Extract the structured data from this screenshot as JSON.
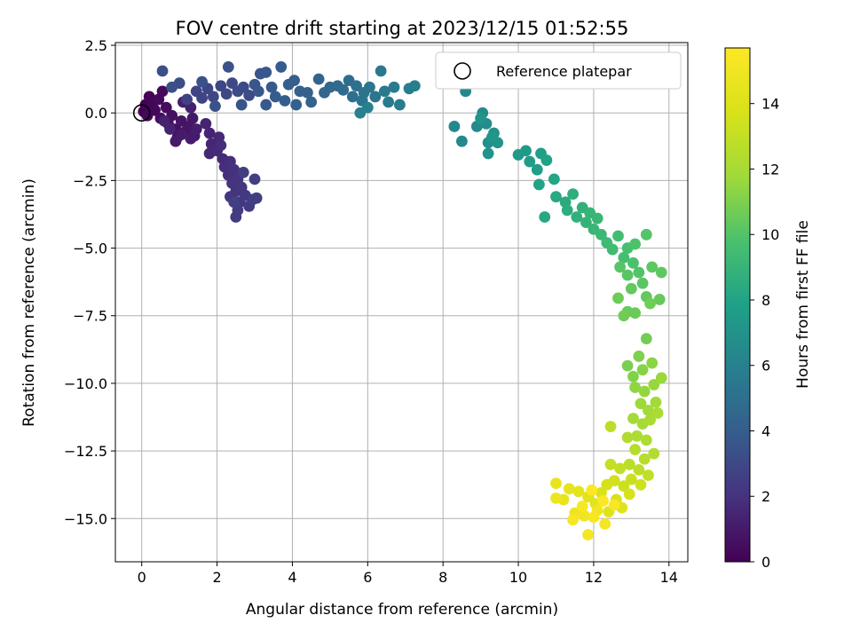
{
  "chart_data": {
    "type": "scatter",
    "title": "FOV centre drift starting at 2023/12/15 01:52:55",
    "xlabel": "Angular distance from reference (arcmin)",
    "ylabel": "Rotation from reference (arcmin)",
    "xlim": [
      -0.7,
      14.5
    ],
    "ylim": [
      -16.6,
      2.6
    ],
    "xticks": [
      0,
      2,
      4,
      6,
      8,
      10,
      12,
      14
    ],
    "yticks": [
      2.5,
      0.0,
      -2.5,
      -5.0,
      -7.5,
      -10.0,
      -12.5,
      -15.0
    ],
    "ytick_labels": [
      "2.5",
      "0.0",
      "−2.5",
      "−5.0",
      "−7.5",
      "−10.0",
      "−12.5",
      "−15.0"
    ],
    "grid": true,
    "legend": {
      "label": "Reference platepar",
      "placement": "top-right"
    },
    "reference_point": {
      "x": 0,
      "y": 0
    },
    "colorbar": {
      "label": "Hours from first FF file",
      "colormap": "viridis",
      "range": [
        0,
        15.7
      ],
      "ticks": [
        0,
        2,
        4,
        6,
        8,
        10,
        12,
        14
      ]
    },
    "points": [
      {
        "x": 0.05,
        "y": 0.05,
        "h": 0.0
      },
      {
        "x": 0.1,
        "y": 0.3,
        "h": 0.1
      },
      {
        "x": 0.2,
        "y": 0.6,
        "h": 0.15
      },
      {
        "x": 0.3,
        "y": 0.4,
        "h": 0.2
      },
      {
        "x": 0.15,
        "y": -0.1,
        "h": 0.25
      },
      {
        "x": 0.35,
        "y": 0.1,
        "h": 0.3
      },
      {
        "x": 0.45,
        "y": 0.5,
        "h": 0.35
      },
      {
        "x": 0.55,
        "y": 0.8,
        "h": 0.4
      },
      {
        "x": 0.5,
        "y": -0.2,
        "h": 0.45
      },
      {
        "x": 0.65,
        "y": 0.2,
        "h": 0.5
      },
      {
        "x": 0.7,
        "y": -0.4,
        "h": 0.55
      },
      {
        "x": 0.8,
        "y": -0.1,
        "h": 0.6
      },
      {
        "x": 0.9,
        "y": -0.6,
        "h": 0.65
      },
      {
        "x": 0.95,
        "y": -0.9,
        "h": 0.7
      },
      {
        "x": 1.05,
        "y": -0.3,
        "h": 0.75
      },
      {
        "x": 1.15,
        "y": -0.7,
        "h": 0.8
      },
      {
        "x": 1.25,
        "y": -0.5,
        "h": 0.85
      },
      {
        "x": 1.35,
        "y": -0.2,
        "h": 0.9
      },
      {
        "x": 1.4,
        "y": -0.85,
        "h": 0.95
      },
      {
        "x": 0.9,
        "y": -1.05,
        "h": 1.0
      },
      {
        "x": 1.05,
        "y": -0.8,
        "h": 1.05
      },
      {
        "x": 1.3,
        "y": -0.95,
        "h": 1.1
      },
      {
        "x": 1.45,
        "y": -0.6,
        "h": 1.15
      },
      {
        "x": 1.3,
        "y": 0.2,
        "h": 1.2
      },
      {
        "x": 1.1,
        "y": 0.4,
        "h": 1.25
      },
      {
        "x": 0.6,
        "y": -0.3,
        "h": 1.3
      },
      {
        "x": 0.75,
        "y": -0.6,
        "h": 1.35
      },
      {
        "x": 1.7,
        "y": -0.4,
        "h": 1.4
      },
      {
        "x": 1.8,
        "y": -0.75,
        "h": 1.45
      },
      {
        "x": 1.85,
        "y": -1.15,
        "h": 1.5
      },
      {
        "x": 2.05,
        "y": -0.9,
        "h": 1.55
      },
      {
        "x": 1.8,
        "y": -1.5,
        "h": 1.6
      },
      {
        "x": 2.0,
        "y": -1.4,
        "h": 1.65
      },
      {
        "x": 2.15,
        "y": -1.7,
        "h": 1.7
      },
      {
        "x": 2.1,
        "y": -1.2,
        "h": 1.75
      },
      {
        "x": 2.2,
        "y": -2.0,
        "h": 1.8
      },
      {
        "x": 2.35,
        "y": -1.8,
        "h": 1.85
      },
      {
        "x": 2.3,
        "y": -2.3,
        "h": 1.9
      },
      {
        "x": 2.45,
        "y": -2.1,
        "h": 1.95
      },
      {
        "x": 2.4,
        "y": -2.6,
        "h": 2.0
      },
      {
        "x": 2.55,
        "y": -2.45,
        "h": 2.05
      },
      {
        "x": 2.5,
        "y": -2.9,
        "h": 2.1
      },
      {
        "x": 2.65,
        "y": -2.75,
        "h": 2.15
      },
      {
        "x": 2.35,
        "y": -3.1,
        "h": 2.2
      },
      {
        "x": 2.6,
        "y": -3.3,
        "h": 2.25
      },
      {
        "x": 2.75,
        "y": -3.05,
        "h": 2.3
      },
      {
        "x": 2.85,
        "y": -3.45,
        "h": 2.35
      },
      {
        "x": 2.55,
        "y": -3.6,
        "h": 2.4
      },
      {
        "x": 2.5,
        "y": -3.85,
        "h": 2.45
      },
      {
        "x": 2.95,
        "y": -3.2,
        "h": 2.5
      },
      {
        "x": 3.05,
        "y": -3.15,
        "h": 2.5
      },
      {
        "x": 3.0,
        "y": -2.45,
        "h": 2.55
      },
      {
        "x": 2.7,
        "y": -2.2,
        "h": 2.55
      },
      {
        "x": 2.45,
        "y": -3.3,
        "h": 2.6
      },
      {
        "x": 1.2,
        "y": 0.5,
        "h": 2.7
      },
      {
        "x": 1.45,
        "y": 0.8,
        "h": 2.75
      },
      {
        "x": 1.6,
        "y": 0.55,
        "h": 2.8
      },
      {
        "x": 1.75,
        "y": 0.9,
        "h": 2.85
      },
      {
        "x": 1.9,
        "y": 0.6,
        "h": 2.9
      },
      {
        "x": 2.1,
        "y": 1.0,
        "h": 2.95
      },
      {
        "x": 2.25,
        "y": 0.7,
        "h": 3.0
      },
      {
        "x": 2.4,
        "y": 1.1,
        "h": 3.05
      },
      {
        "x": 2.55,
        "y": 0.8,
        "h": 3.1
      },
      {
        "x": 2.7,
        "y": 0.95,
        "h": 3.15
      },
      {
        "x": 2.85,
        "y": 0.65,
        "h": 3.2
      },
      {
        "x": 1.0,
        "y": 1.1,
        "h": 3.25
      },
      {
        "x": 0.55,
        "y": 1.55,
        "h": 3.3
      },
      {
        "x": 0.8,
        "y": 0.95,
        "h": 3.35
      },
      {
        "x": 1.6,
        "y": 1.15,
        "h": 3.4
      },
      {
        "x": 2.3,
        "y": 1.7,
        "h": 3.45
      },
      {
        "x": 1.95,
        "y": 0.25,
        "h": 3.5
      },
      {
        "x": 2.65,
        "y": 0.3,
        "h": 3.55
      },
      {
        "x": 3.0,
        "y": 1.05,
        "h": 3.6
      },
      {
        "x": 3.15,
        "y": 1.45,
        "h": 3.65
      },
      {
        "x": 3.3,
        "y": 1.5,
        "h": 3.7
      },
      {
        "x": 3.1,
        "y": 0.8,
        "h": 3.75
      },
      {
        "x": 3.3,
        "y": 0.3,
        "h": 3.8
      },
      {
        "x": 3.45,
        "y": 0.95,
        "h": 3.85
      },
      {
        "x": 3.55,
        "y": 0.6,
        "h": 3.9
      },
      {
        "x": 3.7,
        "y": 1.7,
        "h": 3.95
      },
      {
        "x": 3.8,
        "y": 0.45,
        "h": 4.0
      },
      {
        "x": 3.9,
        "y": 1.05,
        "h": 4.05
      },
      {
        "x": 4.05,
        "y": 1.2,
        "h": 4.1
      },
      {
        "x": 4.1,
        "y": 0.3,
        "h": 4.15
      },
      {
        "x": 4.2,
        "y": 0.8,
        "h": 4.2
      },
      {
        "x": 4.4,
        "y": 0.75,
        "h": 4.25
      },
      {
        "x": 4.5,
        "y": 0.4,
        "h": 4.3
      },
      {
        "x": 4.7,
        "y": 1.25,
        "h": 4.4
      },
      {
        "x": 4.85,
        "y": 0.75,
        "h": 4.5
      },
      {
        "x": 5.0,
        "y": 0.95,
        "h": 4.6
      },
      {
        "x": 5.2,
        "y": 1.0,
        "h": 4.7
      },
      {
        "x": 5.35,
        "y": 0.85,
        "h": 4.8
      },
      {
        "x": 5.5,
        "y": 1.2,
        "h": 4.9
      },
      {
        "x": 5.6,
        "y": 0.6,
        "h": 5.0
      },
      {
        "x": 5.7,
        "y": 1.0,
        "h": 5.1
      },
      {
        "x": 5.85,
        "y": 0.45,
        "h": 5.2
      },
      {
        "x": 5.9,
        "y": 0.75,
        "h": 5.25
      },
      {
        "x": 6.05,
        "y": 0.95,
        "h": 5.3
      },
      {
        "x": 6.2,
        "y": 0.6,
        "h": 5.4
      },
      {
        "x": 6.35,
        "y": 1.55,
        "h": 5.5
      },
      {
        "x": 6.45,
        "y": 0.8,
        "h": 5.55
      },
      {
        "x": 6.55,
        "y": 0.4,
        "h": 5.6
      },
      {
        "x": 6.7,
        "y": 0.95,
        "h": 5.65
      },
      {
        "x": 6.85,
        "y": 0.3,
        "h": 5.7
      },
      {
        "x": 7.1,
        "y": 0.9,
        "h": 5.8
      },
      {
        "x": 7.25,
        "y": 1.0,
        "h": 5.9
      },
      {
        "x": 6.0,
        "y": 0.2,
        "h": 5.95
      },
      {
        "x": 5.8,
        "y": 0.0,
        "h": 6.0
      },
      {
        "x": 8.3,
        "y": -0.5,
        "h": 6.3
      },
      {
        "x": 8.6,
        "y": 0.8,
        "h": 6.35
      },
      {
        "x": 8.5,
        "y": -1.05,
        "h": 6.4
      },
      {
        "x": 8.9,
        "y": -0.5,
        "h": 6.5
      },
      {
        "x": 9.05,
        "y": 0.0,
        "h": 6.6
      },
      {
        "x": 9.15,
        "y": -0.4,
        "h": 6.7
      },
      {
        "x": 9.2,
        "y": -1.1,
        "h": 6.8
      },
      {
        "x": 9.35,
        "y": -0.75,
        "h": 6.9
      },
      {
        "x": 9.2,
        "y": -1.5,
        "h": 7.0
      },
      {
        "x": 9.45,
        "y": -1.1,
        "h": 7.1
      },
      {
        "x": 9.0,
        "y": -0.2,
        "h": 7.15
      },
      {
        "x": 9.3,
        "y": -0.9,
        "h": 7.2
      },
      {
        "x": 10.0,
        "y": -1.55,
        "h": 7.4
      },
      {
        "x": 10.2,
        "y": -1.4,
        "h": 7.5
      },
      {
        "x": 10.3,
        "y": -1.8,
        "h": 7.6
      },
      {
        "x": 10.5,
        "y": -2.1,
        "h": 7.7
      },
      {
        "x": 10.6,
        "y": -1.5,
        "h": 7.8
      },
      {
        "x": 10.75,
        "y": -1.75,
        "h": 7.9
      },
      {
        "x": 10.55,
        "y": -2.65,
        "h": 8.0
      },
      {
        "x": 10.95,
        "y": -2.45,
        "h": 8.1
      },
      {
        "x": 10.7,
        "y": -3.85,
        "h": 8.2
      },
      {
        "x": 11.0,
        "y": -3.1,
        "h": 8.3
      },
      {
        "x": 11.25,
        "y": -3.3,
        "h": 8.4
      },
      {
        "x": 11.3,
        "y": -3.6,
        "h": 8.5
      },
      {
        "x": 11.45,
        "y": -3.0,
        "h": 8.6
      },
      {
        "x": 11.55,
        "y": -3.85,
        "h": 8.7
      },
      {
        "x": 11.7,
        "y": -3.5,
        "h": 8.8
      },
      {
        "x": 11.8,
        "y": -4.05,
        "h": 8.9
      },
      {
        "x": 11.9,
        "y": -3.7,
        "h": 9.0
      },
      {
        "x": 12.0,
        "y": -4.3,
        "h": 9.05
      },
      {
        "x": 12.1,
        "y": -3.9,
        "h": 9.1
      },
      {
        "x": 12.2,
        "y": -4.5,
        "h": 9.2
      },
      {
        "x": 12.35,
        "y": -4.8,
        "h": 9.3
      },
      {
        "x": 12.5,
        "y": -5.05,
        "h": 9.4
      },
      {
        "x": 12.65,
        "y": -4.55,
        "h": 9.5
      },
      {
        "x": 12.8,
        "y": -5.35,
        "h": 9.6
      },
      {
        "x": 12.9,
        "y": -5.0,
        "h": 9.7
      },
      {
        "x": 13.05,
        "y": -5.55,
        "h": 9.8
      },
      {
        "x": 13.1,
        "y": -4.85,
        "h": 9.9
      },
      {
        "x": 13.2,
        "y": -5.9,
        "h": 10.0
      },
      {
        "x": 13.4,
        "y": -4.5,
        "h": 10.05
      },
      {
        "x": 12.7,
        "y": -5.7,
        "h": 10.1
      },
      {
        "x": 12.9,
        "y": -6.0,
        "h": 10.15
      },
      {
        "x": 13.3,
        "y": -6.3,
        "h": 10.2
      },
      {
        "x": 13.55,
        "y": -5.7,
        "h": 10.25
      },
      {
        "x": 13.8,
        "y": -5.9,
        "h": 10.3
      },
      {
        "x": 13.0,
        "y": -6.5,
        "h": 10.35
      },
      {
        "x": 13.4,
        "y": -6.8,
        "h": 10.4
      },
      {
        "x": 13.75,
        "y": -6.9,
        "h": 10.45
      },
      {
        "x": 12.9,
        "y": -7.35,
        "h": 10.5
      },
      {
        "x": 13.1,
        "y": -7.4,
        "h": 10.55
      },
      {
        "x": 12.65,
        "y": -6.85,
        "h": 10.6
      },
      {
        "x": 13.5,
        "y": -7.05,
        "h": 10.65
      },
      {
        "x": 12.8,
        "y": -7.5,
        "h": 10.7
      },
      {
        "x": 13.4,
        "y": -8.35,
        "h": 10.75
      },
      {
        "x": 12.9,
        "y": -9.35,
        "h": 10.9
      },
      {
        "x": 13.2,
        "y": -9.0,
        "h": 11.0
      },
      {
        "x": 13.05,
        "y": -9.75,
        "h": 11.1
      },
      {
        "x": 13.3,
        "y": -9.5,
        "h": 11.2
      },
      {
        "x": 13.55,
        "y": -9.25,
        "h": 11.3
      },
      {
        "x": 13.1,
        "y": -10.15,
        "h": 11.4
      },
      {
        "x": 13.35,
        "y": -10.3,
        "h": 11.5
      },
      {
        "x": 13.6,
        "y": -10.05,
        "h": 11.6
      },
      {
        "x": 13.8,
        "y": -9.8,
        "h": 11.65
      },
      {
        "x": 13.25,
        "y": -10.75,
        "h": 11.7
      },
      {
        "x": 13.45,
        "y": -11.0,
        "h": 11.8
      },
      {
        "x": 13.65,
        "y": -10.7,
        "h": 11.85
      },
      {
        "x": 13.05,
        "y": -11.3,
        "h": 11.9
      },
      {
        "x": 13.3,
        "y": -11.5,
        "h": 12.0
      },
      {
        "x": 13.5,
        "y": -11.35,
        "h": 12.1
      },
      {
        "x": 13.7,
        "y": -11.1,
        "h": 12.15
      },
      {
        "x": 13.15,
        "y": -11.95,
        "h": 12.2
      },
      {
        "x": 13.4,
        "y": -12.1,
        "h": 12.3
      },
      {
        "x": 12.9,
        "y": -12.0,
        "h": 12.35
      },
      {
        "x": 13.6,
        "y": -12.6,
        "h": 12.4
      },
      {
        "x": 13.1,
        "y": -12.45,
        "h": 12.5
      },
      {
        "x": 13.35,
        "y": -12.8,
        "h": 12.6
      },
      {
        "x": 12.95,
        "y": -13.0,
        "h": 12.7
      },
      {
        "x": 12.45,
        "y": -11.6,
        "h": 12.75
      },
      {
        "x": 13.2,
        "y": -13.2,
        "h": 12.8
      },
      {
        "x": 13.45,
        "y": -13.4,
        "h": 12.9
      },
      {
        "x": 12.7,
        "y": -13.15,
        "h": 13.0
      },
      {
        "x": 12.45,
        "y": -13.0,
        "h": 13.1
      },
      {
        "x": 13.0,
        "y": -13.55,
        "h": 13.2
      },
      {
        "x": 12.8,
        "y": -13.8,
        "h": 13.3
      },
      {
        "x": 13.25,
        "y": -13.75,
        "h": 13.4
      },
      {
        "x": 12.55,
        "y": -13.6,
        "h": 13.5
      },
      {
        "x": 12.35,
        "y": -13.75,
        "h": 13.6
      },
      {
        "x": 12.95,
        "y": -14.1,
        "h": 13.7
      },
      {
        "x": 12.6,
        "y": -14.3,
        "h": 13.8
      },
      {
        "x": 12.2,
        "y": -14.05,
        "h": 13.9
      },
      {
        "x": 12.75,
        "y": -14.6,
        "h": 14.0
      },
      {
        "x": 12.4,
        "y": -14.75,
        "h": 14.1
      },
      {
        "x": 12.05,
        "y": -14.45,
        "h": 14.2
      },
      {
        "x": 11.85,
        "y": -14.2,
        "h": 14.3
      },
      {
        "x": 11.6,
        "y": -14.0,
        "h": 14.4
      },
      {
        "x": 11.35,
        "y": -13.9,
        "h": 14.5
      },
      {
        "x": 11.2,
        "y": -14.3,
        "h": 14.6
      },
      {
        "x": 11.0,
        "y": -13.7,
        "h": 14.7
      },
      {
        "x": 11.0,
        "y": -14.25,
        "h": 14.8
      },
      {
        "x": 11.5,
        "y": -14.8,
        "h": 14.9
      },
      {
        "x": 11.75,
        "y": -14.9,
        "h": 15.0
      },
      {
        "x": 12.1,
        "y": -14.7,
        "h": 15.1
      },
      {
        "x": 12.3,
        "y": -15.2,
        "h": 15.2
      },
      {
        "x": 11.85,
        "y": -15.6,
        "h": 15.3
      },
      {
        "x": 11.45,
        "y": -15.05,
        "h": 15.4
      },
      {
        "x": 12.0,
        "y": -14.95,
        "h": 15.45
      },
      {
        "x": 12.55,
        "y": -14.5,
        "h": 15.5
      },
      {
        "x": 11.7,
        "y": -14.55,
        "h": 15.55
      },
      {
        "x": 12.25,
        "y": -14.35,
        "h": 15.6
      },
      {
        "x": 11.95,
        "y": -13.95,
        "h": 15.65
      }
    ]
  }
}
